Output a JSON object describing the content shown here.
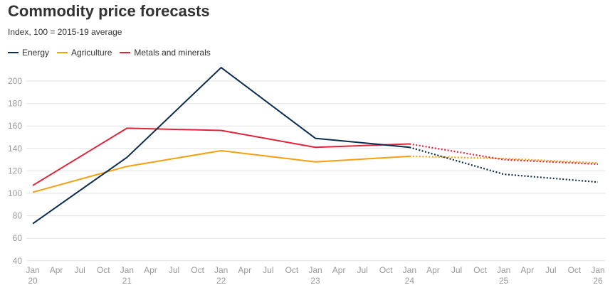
{
  "chart_data": {
    "type": "line",
    "title": "Commodity price forecasts",
    "subtitle": "Index, 100 = 2015-19 average",
    "xlabel": "",
    "ylabel": "",
    "ylim": [
      40,
      210
    ],
    "yticks": [
      40,
      60,
      80,
      100,
      120,
      140,
      160,
      180,
      200
    ],
    "grid": true,
    "legend_position": "top-left",
    "x": [
      2020,
      2021,
      2022,
      2023,
      2024,
      2025,
      2026
    ],
    "xlim": [
      2020,
      2026
    ],
    "xtick_labels": [
      {
        "month": "Jan",
        "year": "20"
      },
      {
        "month": "Apr",
        "year": ""
      },
      {
        "month": "Jul",
        "year": ""
      },
      {
        "month": "Oct",
        "year": ""
      },
      {
        "month": "Jan",
        "year": "21"
      },
      {
        "month": "Apr",
        "year": ""
      },
      {
        "month": "Jul",
        "year": ""
      },
      {
        "month": "Oct",
        "year": ""
      },
      {
        "month": "Jan",
        "year": "22"
      },
      {
        "month": "Apr",
        "year": ""
      },
      {
        "month": "Jul",
        "year": ""
      },
      {
        "month": "Oct",
        "year": ""
      },
      {
        "month": "Jan",
        "year": "23"
      },
      {
        "month": "Apr",
        "year": ""
      },
      {
        "month": "Jul",
        "year": ""
      },
      {
        "month": "Oct",
        "year": ""
      },
      {
        "month": "Jan",
        "year": "24"
      },
      {
        "month": "Apr",
        "year": ""
      },
      {
        "month": "Jul",
        "year": ""
      },
      {
        "month": "Oct",
        "year": ""
      },
      {
        "month": "Jan",
        "year": "25"
      },
      {
        "month": "Apr",
        "year": ""
      },
      {
        "month": "Jul",
        "year": ""
      },
      {
        "month": "Oct",
        "year": ""
      },
      {
        "month": "Jan",
        "year": "26"
      }
    ],
    "forecast_start": 2024,
    "series": [
      {
        "name": "Energy",
        "color": "#0b2c4d",
        "values": [
          73,
          132,
          212,
          149,
          141,
          117,
          110
        ]
      },
      {
        "name": "Agriculture",
        "color": "#f5a00f",
        "values": [
          101,
          124,
          138,
          128,
          133,
          131,
          127
        ]
      },
      {
        "name": "Metals and minerals",
        "color": "#e0243a",
        "values": [
          107,
          158,
          156,
          141,
          144,
          130,
          126
        ]
      }
    ]
  }
}
